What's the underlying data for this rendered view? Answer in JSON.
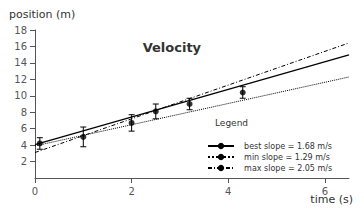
{
  "chart_data": {
    "type": "scatter",
    "title": "Velocity",
    "xlabel": "time (s)",
    "ylabel": "position (m)",
    "legend_title": "Legend",
    "xlim": [
      0,
      6.5
    ],
    "ylim": [
      0,
      18
    ],
    "xticks": [
      0,
      2,
      4,
      6
    ],
    "yticks": [
      2,
      4,
      6,
      8,
      10,
      12,
      14,
      16,
      18
    ],
    "grid": false,
    "legend": "lower right",
    "series": [
      {
        "name": "  best slope = 1.68 m/s",
        "type": "line",
        "line_style": "solid",
        "color": "black",
        "x": [
          0,
          6.5
        ],
        "values": [
          4.05,
          14.97
        ]
      },
      {
        "name": "  min slope = 1.29 m/s",
        "type": "line",
        "line_style": "dotted",
        "color": "black",
        "x": [
          0,
          6.5
        ],
        "values": [
          3.9,
          12.285
        ]
      },
      {
        "name": "  max slope = 2.05 m/s",
        "type": "line",
        "line_style": "dashdot",
        "color": "black",
        "x": [
          0,
          6.5
        ],
        "values": [
          3.1,
          16.425
        ]
      },
      {
        "type": "scatter",
        "marker": "circle",
        "color": "black",
        "x": [
          0.1,
          1.0,
          2.0,
          2.5,
          3.2,
          4.3
        ],
        "values": [
          4.2,
          5.0,
          6.7,
          8.1,
          9.0,
          10.4
        ],
        "errors": [
          0.7,
          1.2,
          1.0,
          0.9,
          0.7,
          0.7
        ]
      }
    ]
  }
}
